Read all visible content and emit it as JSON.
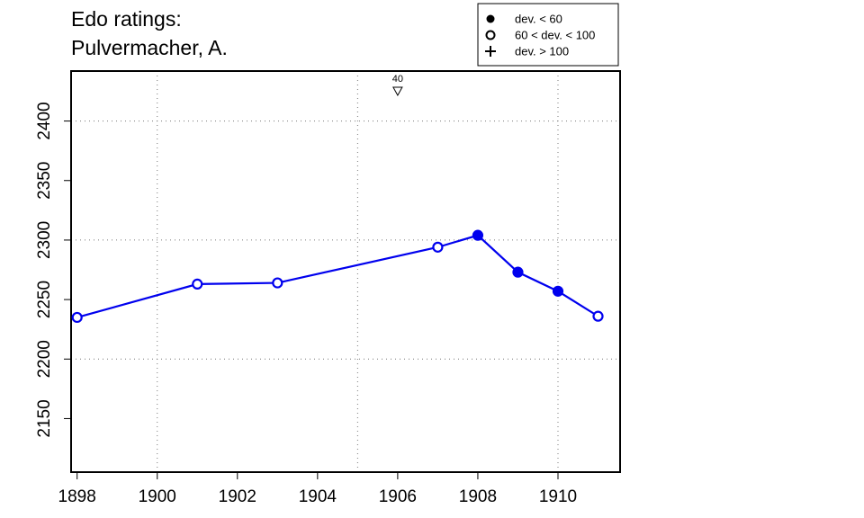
{
  "chart_data": {
    "type": "line",
    "title": [
      "Edo ratings:",
      "Pulvermacher, A."
    ],
    "xlabel": "",
    "ylabel": "",
    "xlim": [
      1897.85,
      1911.55
    ],
    "ylim": [
      2105,
      2442
    ],
    "x_ticks": [
      1898,
      1900,
      1902,
      1904,
      1906,
      1908,
      1910
    ],
    "y_ticks": [
      2150,
      2200,
      2250,
      2300,
      2350,
      2400
    ],
    "x_grid": [
      1900,
      1905,
      1910
    ],
    "y_grid": [
      2200,
      2300,
      2400
    ],
    "grid": "dotted",
    "series": [
      {
        "color": "#0000ee",
        "points": [
          {
            "x": 1898,
            "y": 2235,
            "marker": "open-circle"
          },
          {
            "x": 1901,
            "y": 2263,
            "marker": "open-circle"
          },
          {
            "x": 1903,
            "y": 2264,
            "marker": "open-circle"
          },
          {
            "x": 1907,
            "y": 2294,
            "marker": "open-circle"
          },
          {
            "x": 1908,
            "y": 2304,
            "marker": "filled-circle"
          },
          {
            "x": 1909,
            "y": 2273,
            "marker": "filled-circle"
          },
          {
            "x": 1910,
            "y": 2257,
            "marker": "filled-circle"
          },
          {
            "x": 1911,
            "y": 2236,
            "marker": "open-circle"
          }
        ]
      }
    ],
    "annotations": [
      {
        "x": 1906,
        "label": "40",
        "marker": "open-down-triangle",
        "placement": "above plot top"
      }
    ],
    "legend": {
      "placement": "top-right",
      "entries": [
        {
          "symbol": "filled-circle",
          "label": "dev. < 60"
        },
        {
          "symbol": "open-circle",
          "label": "60 < dev. < 100"
        },
        {
          "symbol": "plus",
          "label": "dev. > 100"
        }
      ]
    }
  }
}
